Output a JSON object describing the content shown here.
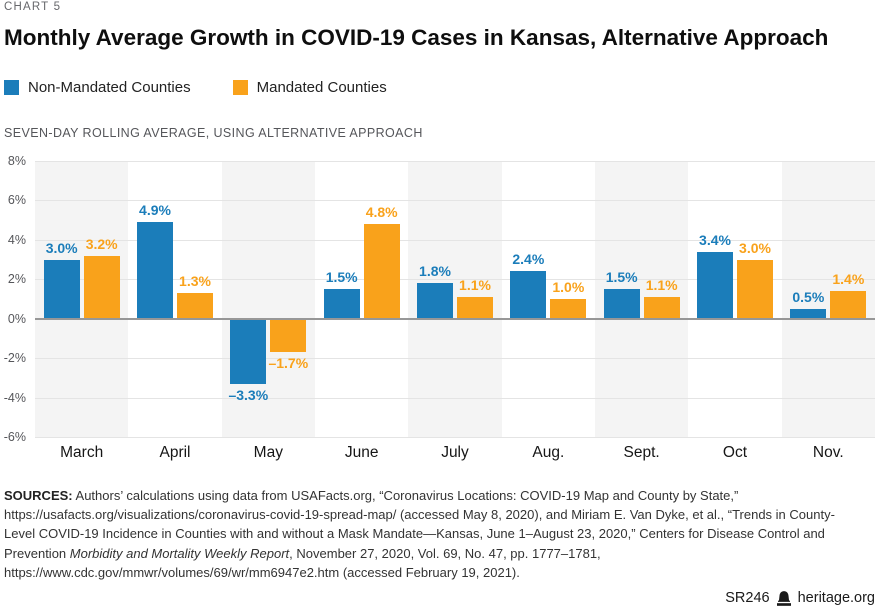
{
  "header": {
    "eyebrow": "CHART 5",
    "title": "Monthly Average Growth in COVID-19 Cases in Kansas, Alternative Approach",
    "subtitle": "SEVEN-DAY ROLLING AVERAGE, USING ALTERNATIVE APPROACH"
  },
  "legend": [
    {
      "label": "Non-Mandated Counties",
      "color": "#1b7dba"
    },
    {
      "label": "Mandated Counties",
      "color": "#f9a21b"
    }
  ],
  "chart_data": {
    "type": "bar",
    "title": "Monthly Average Growth in COVID-19 Cases in Kansas, Alternative Approach",
    "subtitle": "SEVEN-DAY ROLLING AVERAGE, USING ALTERNATIVE APPROACH",
    "categories": [
      "March",
      "April",
      "May",
      "June",
      "July",
      "Aug.",
      "Sept.",
      "Oct",
      "Nov."
    ],
    "series": [
      {
        "name": "Non-Mandated Counties",
        "color": "#1b7dba",
        "values": [
          3.0,
          4.9,
          -3.3,
          1.5,
          1.8,
          2.4,
          1.5,
          3.4,
          0.5
        ]
      },
      {
        "name": "Mandated Counties",
        "color": "#f9a21b",
        "values": [
          3.2,
          1.3,
          -1.7,
          4.8,
          1.1,
          1.0,
          1.1,
          3.0,
          1.4
        ]
      }
    ],
    "value_labels": [
      [
        "3.0%",
        "4.9%",
        "–3.3%",
        "1.5%",
        "1.8%",
        "2.4%",
        "1.5%",
        "3.4%",
        "0.5%"
      ],
      [
        "3.2%",
        "1.3%",
        "–1.7%",
        "4.8%",
        "1.1%",
        "1.0%",
        "1.1%",
        "3.0%",
        "1.4%"
      ]
    ],
    "ylim": [
      -6,
      8
    ],
    "ytick_step": 2,
    "ytick_labels": [
      "8%",
      "6%",
      "4%",
      "2%",
      "0%",
      "-2%",
      "-4%",
      "-6%"
    ],
    "grid": "horizontal",
    "band_stripes": "alternating-gray-starting-first",
    "legend_position": "top-left",
    "xlabel": "",
    "ylabel": ""
  },
  "colors": {
    "stripe": "#f4f4f4",
    "gridline": "#e4e4e4",
    "zero_line": "#979797"
  },
  "sources": {
    "label": "SOURCES:",
    "text_before_italic": " Authors’ calculations using data from USAFacts.org, “Coronavirus Locations: COVID-19 Map and County by State,” https://usafacts.org/visualizations/coronavirus-covid-19-spread-map/ (accessed May 8, 2020), and Miriam E. Van Dyke, et al., “Trends in County-Level COVID-19 Incidence in Counties with and without a Mask Mandate—Kansas, June 1–August 23, 2020,” Centers for Disease Control and Prevention ",
    "italic": "Morbidity and Mortality Weekly Report",
    "text_after_italic": ", November 27, 2020, Vol. 69, No. 47, pp. 1777–1781, https://www.cdc.gov/mmwr/volumes/69/wr/mm6947e2.htm (accessed February 19, 2021)."
  },
  "footer": {
    "report_id": "SR246",
    "site": "heritage.org",
    "logo": "heritage-liberty-bell"
  }
}
